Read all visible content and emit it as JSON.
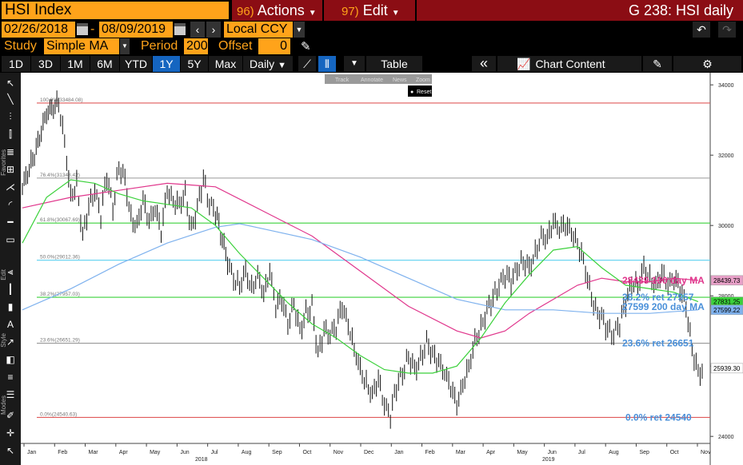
{
  "header": {
    "ticker": "HSI Index",
    "actions_num": "96)",
    "actions_label": "Actions",
    "edit_num": "97)",
    "edit_label": "Edit",
    "panel_title": "G 238: HSI daily"
  },
  "dates": {
    "start": "02/26/2018",
    "end": "08/09/2019",
    "currency": "Local CCY"
  },
  "study": {
    "label": "Study",
    "value": "Simple MA",
    "period_label": "Period",
    "period_value": "200",
    "offset_label": "Offset",
    "offset_value": "0"
  },
  "periods": [
    "1D",
    "3D",
    "1M",
    "6M",
    "YTD",
    "1Y",
    "5Y",
    "Max"
  ],
  "selected_period": "1Y",
  "frequency": "Daily",
  "table_label": "Table",
  "chart_content_label": "Chart Content",
  "mini_toolbar": {
    "track": "Track",
    "annotate": "Annotate",
    "news": "News",
    "zoom": "Zoom",
    "reset": "Reset"
  },
  "left_toolbar_labels": [
    "Favorites",
    "Edit",
    "Style",
    "Modes"
  ],
  "chart_data": {
    "type": "line",
    "title": "",
    "ylim": [
      23800,
      34300
    ],
    "y_ticks": [
      "34000",
      "32000",
      "30000",
      "28000",
      "26000",
      "24000"
    ],
    "x_month_labels": [
      "Jan",
      "Feb",
      "Mar",
      "Apr",
      "May",
      "Jun",
      "Jul",
      "Aug",
      "Sep",
      "Oct",
      "Nov",
      "Dec",
      "Jan",
      "Feb",
      "Mar",
      "Apr",
      "May",
      "Jun",
      "Jul",
      "Aug",
      "Sep",
      "Oct",
      "Nov"
    ],
    "year_labels": [
      "2018",
      "2019"
    ],
    "fib_levels": [
      {
        "label": "100.0%(33484.08)",
        "value": 33484.08,
        "color": "#e05a5a"
      },
      {
        "label": "76.4%(31348.42)",
        "value": 31348.42,
        "color": "#999999"
      },
      {
        "label": "61.8%(30067.69)",
        "value": 30067.69,
        "color": "#3bd13b"
      },
      {
        "label": "50.0%(29012.36)",
        "value": 29012.36,
        "color": "#5cd0f0"
      },
      {
        "label": "38.2%(27957.03)",
        "value": 27957.03,
        "color": "#3bd13b"
      },
      {
        "label": "23.6%(26651.29)",
        "value": 26651.29,
        "color": "#999999"
      },
      {
        "label": "0.0%(24540.63)",
        "value": 24540.63,
        "color": "#e05a5a"
      }
    ],
    "annotations": [
      {
        "text": "28439 100 day MA",
        "color": "#e0368c",
        "value": 28439
      },
      {
        "text": "38.2% ret 27957",
        "color": "#4a90d9",
        "value": 27957
      },
      {
        "text": "27599 200 day MA",
        "color": "#4a90d9",
        "value": 27599
      },
      {
        "text": "23.6% ret 26651",
        "color": "#4a90d9",
        "value": 26651
      },
      {
        "text": "0.0% ret 24540",
        "color": "#4a90d9",
        "value": 24540
      }
    ],
    "last_value_tags": [
      {
        "text": "28439.73",
        "value": 28439.73,
        "color": "#e8a0c8"
      },
      {
        "text": "27831.25",
        "value": 27831.25,
        "color": "#3bd13b"
      },
      {
        "text": "27599.22",
        "value": 27599.22,
        "color": "#7fb2ee"
      },
      {
        "text": "25939.30",
        "value": 25939.3,
        "color": "#ffffff"
      }
    ],
    "series": [
      {
        "name": "HSI",
        "color": "#000000",
        "values": [
          [
            0,
            31100
          ],
          [
            1,
            32000
          ],
          [
            2,
            33200
          ],
          [
            3,
            33484
          ],
          [
            3.5,
            32400
          ],
          [
            4,
            30800
          ],
          [
            4.5,
            31200
          ],
          [
            5,
            29700
          ],
          [
            5.5,
            30500
          ],
          [
            6,
            31000
          ],
          [
            6.5,
            30300
          ],
          [
            7,
            31400
          ],
          [
            7.5,
            30500
          ],
          [
            8,
            31700
          ],
          [
            8.5,
            31300
          ],
          [
            9,
            30200
          ],
          [
            9.5,
            30000
          ],
          [
            10,
            30700
          ],
          [
            10.5,
            30100
          ],
          [
            11,
            30500
          ],
          [
            11.5,
            29800
          ],
          [
            12,
            31000
          ],
          [
            12.5,
            30700
          ],
          [
            13,
            30600
          ],
          [
            13.5,
            30900
          ],
          [
            14,
            29900
          ],
          [
            14.5,
            30500
          ],
          [
            15,
            31300
          ],
          [
            15.5,
            30600
          ],
          [
            16,
            30400
          ],
          [
            17,
            29000
          ],
          [
            17.5,
            28500
          ],
          [
            18,
            28300
          ],
          [
            18.5,
            28700
          ],
          [
            19,
            28200
          ],
          [
            19.5,
            28600
          ],
          [
            20,
            28000
          ],
          [
            20.5,
            28700
          ],
          [
            21,
            27700
          ],
          [
            21.5,
            27900
          ],
          [
            22,
            27200
          ],
          [
            22.5,
            27800
          ],
          [
            23,
            27000
          ],
          [
            23.5,
            27500
          ],
          [
            24,
            27700
          ],
          [
            24.5,
            26300
          ],
          [
            25,
            27000
          ],
          [
            25.5,
            26900
          ],
          [
            26,
            27100
          ],
          [
            26.5,
            27700
          ],
          [
            27,
            27200
          ],
          [
            27.5,
            26500
          ],
          [
            28,
            25900
          ],
          [
            28.5,
            25500
          ],
          [
            29,
            25200
          ],
          [
            29.5,
            25600
          ],
          [
            30,
            24900
          ],
          [
            30.5,
            24600
          ],
          [
            31,
            25400
          ],
          [
            31.5,
            25800
          ],
          [
            32,
            26300
          ],
          [
            32.5,
            25900
          ],
          [
            33,
            26200
          ],
          [
            33.5,
            26700
          ],
          [
            34,
            26300
          ],
          [
            34.5,
            26100
          ],
          [
            35,
            25800
          ],
          [
            35.5,
            25400
          ],
          [
            36,
            24900
          ],
          [
            36.5,
            25500
          ],
          [
            37,
            26000
          ],
          [
            37.5,
            26700
          ],
          [
            38,
            27100
          ],
          [
            38.5,
            27600
          ],
          [
            39,
            27900
          ],
          [
            39.5,
            28300
          ],
          [
            40,
            28600
          ],
          [
            40.5,
            28400
          ],
          [
            41,
            28800
          ],
          [
            41.5,
            29000
          ],
          [
            42,
            28800
          ],
          [
            42.5,
            29200
          ],
          [
            43,
            29700
          ],
          [
            43.5,
            29600
          ],
          [
            44,
            30100
          ],
          [
            44.5,
            29900
          ],
          [
            45,
            30000
          ],
          [
            45.5,
            29800
          ],
          [
            46,
            29500
          ],
          [
            46.5,
            29000
          ],
          [
            47,
            28200
          ],
          [
            47.5,
            27600
          ],
          [
            48,
            27400
          ],
          [
            48.5,
            27000
          ],
          [
            49,
            26900
          ],
          [
            49.5,
            27200
          ],
          [
            50,
            27800
          ],
          [
            50.5,
            28400
          ],
          [
            51,
            28300
          ],
          [
            51.5,
            28800
          ],
          [
            52,
            28500
          ],
          [
            52.5,
            28300
          ],
          [
            53,
            28600
          ],
          [
            53.5,
            28300
          ],
          [
            54,
            28500
          ],
          [
            54.5,
            28200
          ],
          [
            55,
            27700
          ],
          [
            55.5,
            26500
          ],
          [
            56,
            25800
          ],
          [
            56.5,
            25939
          ]
        ]
      },
      {
        "name": "100 day MA",
        "color": "#e0368c",
        "values": [
          [
            0,
            30500
          ],
          [
            4,
            30800
          ],
          [
            8,
            31000
          ],
          [
            12,
            31200
          ],
          [
            16,
            31100
          ],
          [
            20,
            30400
          ],
          [
            24,
            29700
          ],
          [
            28,
            28700
          ],
          [
            32,
            27700
          ],
          [
            36,
            27000
          ],
          [
            38,
            26800
          ],
          [
            40,
            27000
          ],
          [
            42,
            27500
          ],
          [
            44,
            27900
          ],
          [
            46,
            28300
          ],
          [
            48,
            28500
          ],
          [
            50,
            28400
          ],
          [
            52,
            28400
          ],
          [
            54,
            28500
          ],
          [
            56,
            28439
          ]
        ]
      },
      {
        "name": "200 day MA",
        "color": "#7fb2ee",
        "values": [
          [
            0,
            27600
          ],
          [
            4,
            28200
          ],
          [
            8,
            28900
          ],
          [
            12,
            29500
          ],
          [
            16,
            29950
          ],
          [
            18,
            30050
          ],
          [
            20,
            29900
          ],
          [
            24,
            29600
          ],
          [
            28,
            29100
          ],
          [
            32,
            28500
          ],
          [
            36,
            27900
          ],
          [
            40,
            27600
          ],
          [
            44,
            27600
          ],
          [
            48,
            27500
          ],
          [
            52,
            27500
          ],
          [
            56,
            27599
          ]
        ]
      },
      {
        "name": "50 day MA",
        "color": "#3bd13b",
        "values": [
          [
            0,
            29500
          ],
          [
            2,
            30800
          ],
          [
            4,
            31300
          ],
          [
            6,
            31200
          ],
          [
            8,
            30900
          ],
          [
            10,
            30700
          ],
          [
            12,
            30600
          ],
          [
            14,
            30500
          ],
          [
            16,
            30000
          ],
          [
            18,
            29200
          ],
          [
            20,
            28500
          ],
          [
            22,
            27800
          ],
          [
            24,
            27200
          ],
          [
            26,
            26800
          ],
          [
            28,
            26300
          ],
          [
            30,
            25900
          ],
          [
            32,
            25800
          ],
          [
            34,
            25800
          ],
          [
            36,
            26000
          ],
          [
            38,
            26800
          ],
          [
            40,
            27800
          ],
          [
            42,
            28600
          ],
          [
            44,
            29300
          ],
          [
            46,
            29400
          ],
          [
            48,
            28800
          ],
          [
            50,
            28300
          ],
          [
            52,
            28200
          ],
          [
            54,
            28100
          ],
          [
            56,
            27831
          ]
        ]
      }
    ]
  }
}
